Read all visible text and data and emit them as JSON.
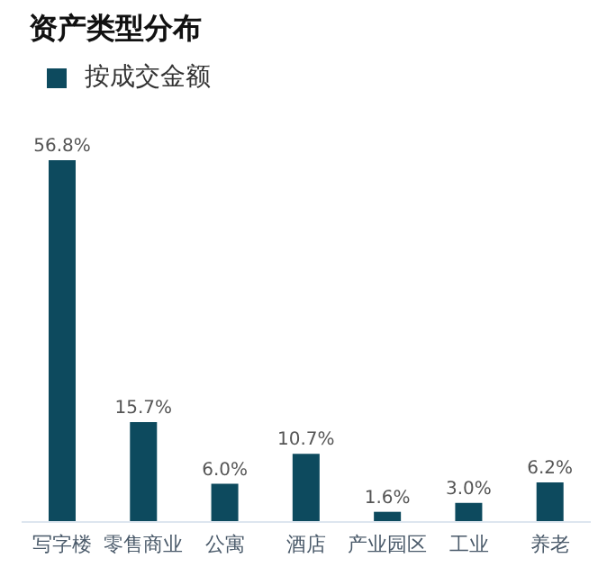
{
  "chart_data": {
    "type": "bar",
    "title": "资产类型分布",
    "categories": [
      "写字楼",
      "零售商业",
      "公寓",
      "酒店",
      "产业园区",
      "工业",
      "养老"
    ],
    "series": [
      {
        "name": "按成交金额",
        "color": "#0d4a5e",
        "values": [
          56.8,
          15.7,
          6.0,
          10.7,
          1.6,
          3.0,
          6.2
        ],
        "value_labels": [
          "56.8%",
          "15.7%",
          "6.0%",
          "10.7%",
          "1.6%",
          "3.0%",
          "6.2%"
        ]
      }
    ],
    "legend": "top left",
    "tick_labels": "x"
  }
}
